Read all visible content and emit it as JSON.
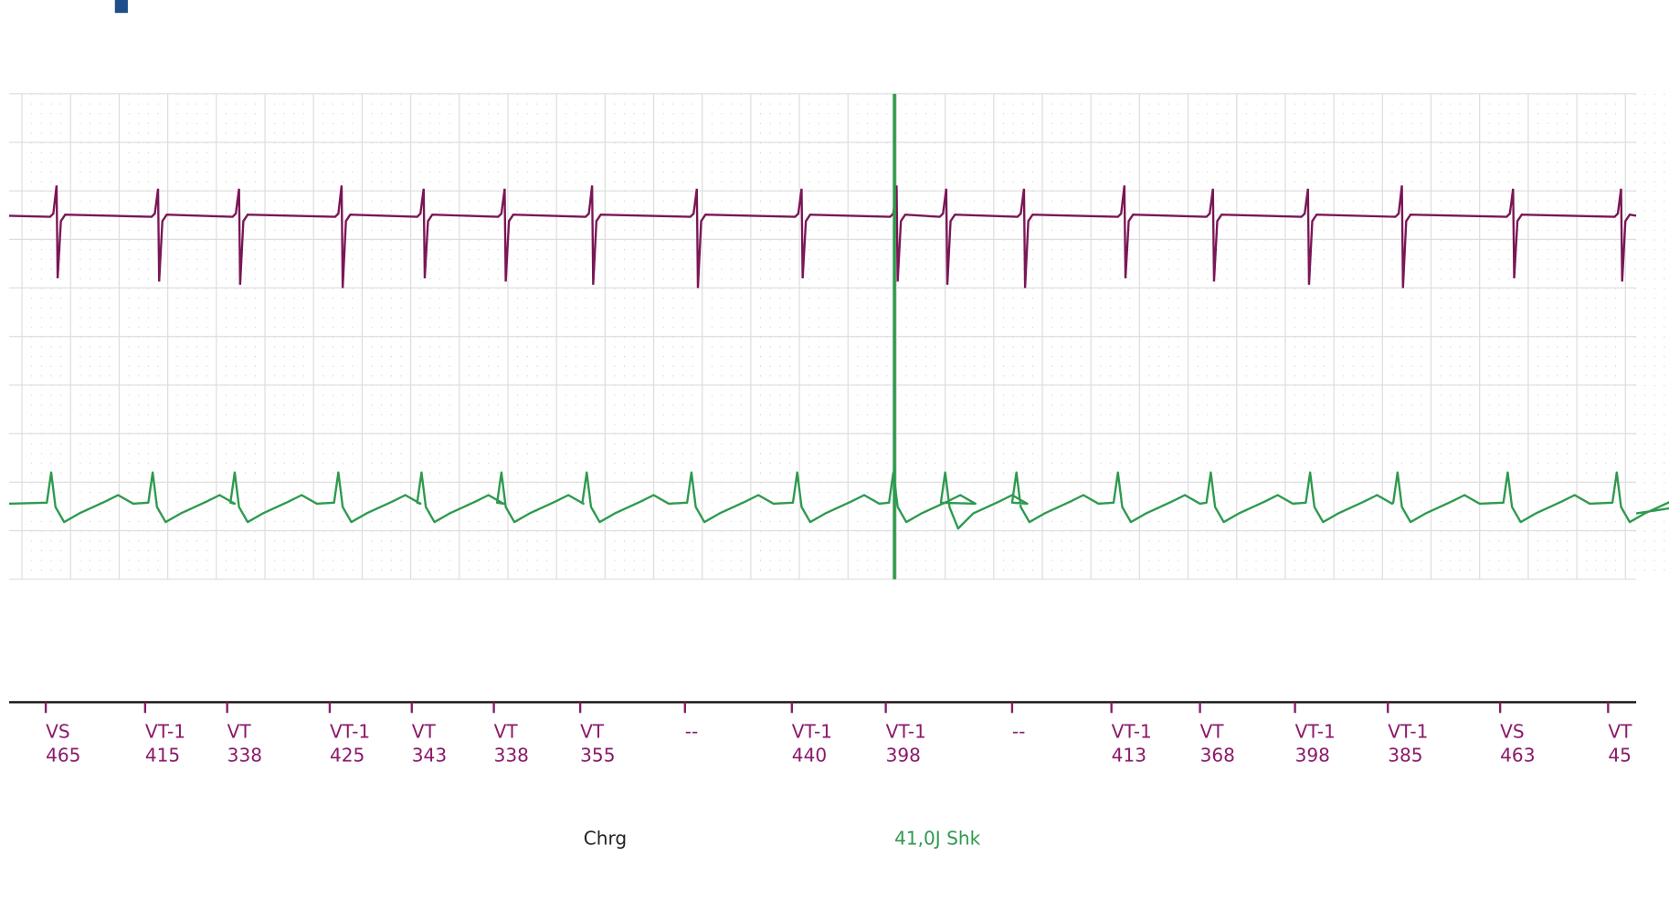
{
  "markers": [
    {
      "label": "VS",
      "interval": "465"
    },
    {
      "label": "VT-1",
      "interval": "415"
    },
    {
      "label": "VT",
      "interval": "338"
    },
    {
      "label": "VT-1",
      "interval": "425"
    },
    {
      "label": "VT",
      "interval": "343"
    },
    {
      "label": "VT",
      "interval": "338"
    },
    {
      "label": "VT",
      "interval": "355"
    },
    {
      "label": "--"
    },
    {
      "label": "VT-1",
      "interval": "440"
    },
    {
      "label": "VT-1",
      "interval": "398"
    },
    {
      "label": "--"
    },
    {
      "label": "VT-1",
      "interval": "413"
    },
    {
      "label": "VT",
      "interval": "368"
    },
    {
      "label": "VT-1",
      "interval": "398"
    },
    {
      "label": "VT-1",
      "interval": "385"
    },
    {
      "label": "VS",
      "interval": "463"
    },
    {
      "label": "VT",
      "interval": "45"
    }
  ],
  "annotations": {
    "charge": "Chrg",
    "shock": "41,0J Shk"
  }
}
